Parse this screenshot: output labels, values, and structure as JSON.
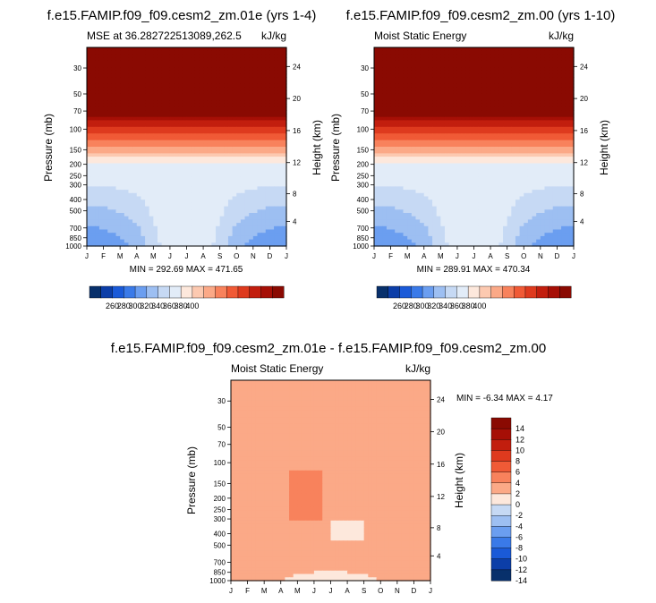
{
  "chart_data": [
    {
      "type": "heatmap",
      "title": "f.e15.FAMIP.f09_f09.cesm2_zm.01e (yrs 1-4)",
      "subtitle_left": "MSE at 36.282722513089,262.5",
      "subtitle_right": "kJ/kg",
      "xlabel": "",
      "ylabel": "Pressure (mb)",
      "y2label": "Height (km)",
      "x_ticks": [
        "J",
        "F",
        "M",
        "A",
        "M",
        "J",
        "J",
        "A",
        "S",
        "O",
        "N",
        "D",
        "J"
      ],
      "pressure_ticks": [
        "30",
        "50",
        "70",
        "100",
        "150",
        "200",
        "250",
        "300",
        "400",
        "500",
        "700",
        "850",
        "1000"
      ],
      "height_ticks": [
        "24",
        "20",
        "16",
        "12",
        "8",
        "4"
      ],
      "ylim_mb": [
        1000,
        20
      ],
      "min": "292.69",
      "max": "471.65",
      "stats": "MIN = 292.69  MAX = 471.65",
      "field_range": [
        292.69,
        471.65
      ],
      "colorbar_labels": [
        "260",
        "280",
        "300",
        "320",
        "340",
        "360",
        "380",
        "400"
      ]
    },
    {
      "type": "heatmap",
      "title": "f.e15.FAMIP.f09_f09.cesm2_zm.00 (yrs 1-10)",
      "subtitle_left": "Moist Static Energy",
      "subtitle_right": "kJ/kg",
      "xlabel": "",
      "ylabel": "Pressure (mb)",
      "y2label": "Height (km)",
      "x_ticks": [
        "J",
        "F",
        "M",
        "A",
        "M",
        "J",
        "J",
        "A",
        "S",
        "O",
        "N",
        "D",
        "J"
      ],
      "pressure_ticks": [
        "30",
        "50",
        "70",
        "100",
        "150",
        "200",
        "250",
        "300",
        "400",
        "500",
        "700",
        "850",
        "1000"
      ],
      "height_ticks": [
        "24",
        "20",
        "16",
        "12",
        "8",
        "4"
      ],
      "ylim_mb": [
        1000,
        20
      ],
      "min": "289.91",
      "max": "470.34",
      "stats": "MIN = 289.91  MAX = 470.34",
      "field_range": [
        289.91,
        470.34
      ],
      "colorbar_labels": [
        "260",
        "280",
        "300",
        "320",
        "340",
        "360",
        "380",
        "400"
      ]
    },
    {
      "type": "heatmap",
      "title": "f.e15.FAMIP.f09_f09.cesm2_zm.01e - f.e15.FAMIP.f09_f09.cesm2_zm.00",
      "subtitle_left": "Moist Static Energy",
      "subtitle_right": "kJ/kg",
      "xlabel": "",
      "ylabel": "Pressure (mb)",
      "y2label": "Height (km)",
      "x_ticks": [
        "J",
        "F",
        "M",
        "A",
        "M",
        "J",
        "J",
        "A",
        "S",
        "O",
        "N",
        "D",
        "J"
      ],
      "pressure_ticks": [
        "30",
        "50",
        "70",
        "100",
        "150",
        "200",
        "250",
        "300",
        "400",
        "500",
        "700",
        "850",
        "1000"
      ],
      "height_ticks": [
        "24",
        "20",
        "16",
        "12",
        "8",
        "4"
      ],
      "ylim_mb": [
        1000,
        20
      ],
      "min": "-6.34",
      "max": "4.17",
      "stats": "MIN = -6.34  MAX =  4.17",
      "field_range": [
        -6.34,
        4.17
      ],
      "colorbar_labels": [
        "14",
        "12",
        "10",
        "8",
        "6",
        "4",
        "2",
        "0",
        "-2",
        "-4",
        "-6",
        "-8",
        "-10",
        "-12",
        "-14"
      ]
    }
  ],
  "colors": {
    "mse_scale": [
      "#08306b",
      "#0c3ea8",
      "#1a5ad8",
      "#3a7ae8",
      "#6b9ef0",
      "#9dbff2",
      "#c6d9f4",
      "#e2ecf8",
      "#fde8dc",
      "#fcc9b0",
      "#fba987",
      "#f8825c",
      "#f05a36",
      "#de3a1e",
      "#c21e0e",
      "#a60f06",
      "#8a0a02"
    ],
    "diff_scale": [
      "#8a0a02",
      "#a60f06",
      "#c21e0e",
      "#de3a1e",
      "#f05a36",
      "#f8825c",
      "#fba987",
      "#fde8dc",
      "#c6d9f4",
      "#9dbff2",
      "#6b9ef0",
      "#3a7ae8",
      "#1a5ad8",
      "#0c3ea8",
      "#08306b"
    ]
  }
}
